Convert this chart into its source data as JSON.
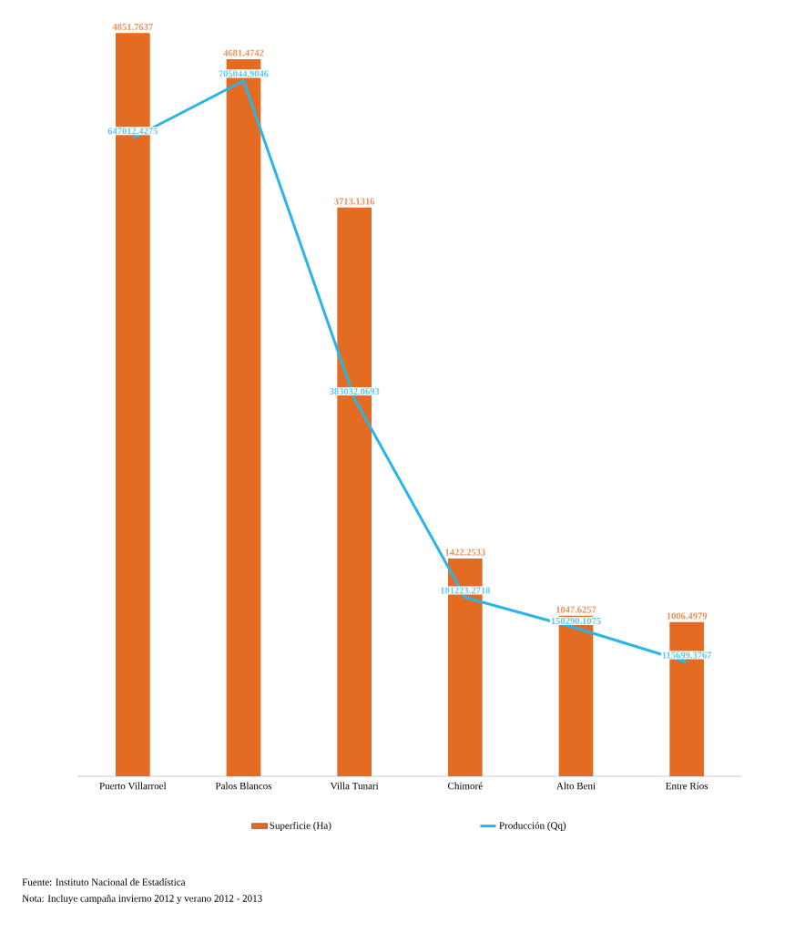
{
  "chart_data": {
    "type": "bar",
    "categories": [
      "Puerto Villarroel",
      "Palos Blancos",
      "Villa Tunari",
      "Chimoré",
      "Alto Beni",
      "Entre Ríos"
    ],
    "series": [
      {
        "name": "Superficie (Ha)",
        "color": "#e36c22",
        "values": [
          4851.7637,
          4681.4742,
          3713.1316,
          1422.2533,
          1047.6257,
          1006.4979
        ]
      },
      {
        "name": "Producción (Qq)",
        "type": "line",
        "axis": "y2",
        "color": "#29b5e8",
        "values": [
          647012.4275,
          705044.9046,
          383032.0693,
          181223.2718,
          150290.1075,
          115699.3767
        ]
      }
    ],
    "legend": "bottom",
    "data_labels": true,
    "annotations": [
      "Fuente: Instituto Nacional de Estadística",
      "Nota: Incluye campaña invierno 2012 y verano 2012 - 2013"
    ]
  }
}
